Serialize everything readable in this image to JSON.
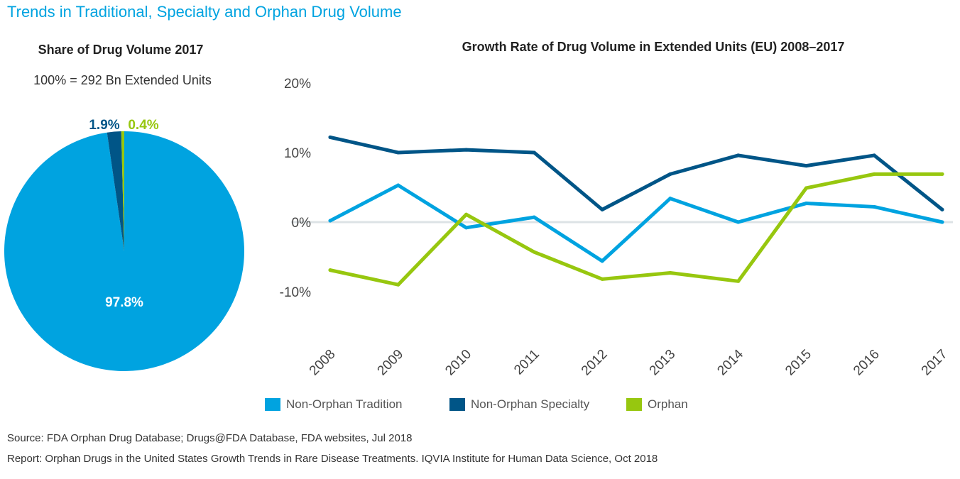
{
  "title": "Trends in Traditional, Specialty and Orphan Drug Volume",
  "source": "Source: FDA Orphan Drug Database;  Drugs@FDA Database, FDA websites, Jul 2018",
  "report": "Report: Orphan Drugs in the United States Growth Trends in Rare Disease Treatments. IQVIA Institute for Human Data Science, Oct 2018",
  "colors": {
    "traditional": "#00a3e0",
    "specialty": "#005587",
    "orphan": "#97c70f",
    "title": "#00a3e0"
  },
  "chart_data": [
    {
      "type": "pie",
      "title": "Share of Drug Volume 2017",
      "subtitle": "100% = 292 Bn Extended Units",
      "slices": [
        {
          "label": "Non-Orphan Tradition",
          "value": 97.8,
          "text": "97.8%",
          "color": "#00a3e0"
        },
        {
          "label": "Non-Orphan Specialty",
          "value": 1.9,
          "text": "1.9%",
          "color": "#005587"
        },
        {
          "label": "Orphan",
          "value": 0.4,
          "text": "0.4%",
          "color": "#97c70f"
        }
      ]
    },
    {
      "type": "line",
      "title": "Growth Rate of Drug Volume in Extended Units (EU) 2008–2017",
      "x": [
        "2008",
        "2009",
        "2010",
        "2011",
        "2012",
        "2013",
        "2014",
        "2015",
        "2016",
        "2017"
      ],
      "yticks": [
        20,
        10,
        0,
        -10
      ],
      "ytick_labels": [
        "20%",
        "10%",
        "0%",
        "-10%"
      ],
      "ylim": [
        -17,
        20
      ],
      "grid": "zero line only",
      "legend": "bottom",
      "series": [
        {
          "name": "Non-Orphan Tradition",
          "color": "#00a3e0",
          "values": [
            0.2,
            5.3,
            -0.8,
            0.7,
            -5.6,
            3.4,
            0.0,
            2.7,
            2.2,
            0.0
          ]
        },
        {
          "name": "Non-Orphan Specialty",
          "color": "#005587",
          "values": [
            12.2,
            10.0,
            10.4,
            10.0,
            1.8,
            6.9,
            9.6,
            8.1,
            9.6,
            1.8
          ]
        },
        {
          "name": "Orphan",
          "color": "#97c70f",
          "values": [
            -6.9,
            -9.0,
            1.1,
            -4.3,
            -8.2,
            -7.3,
            -8.5,
            4.9,
            6.9,
            6.9
          ]
        }
      ]
    }
  ]
}
